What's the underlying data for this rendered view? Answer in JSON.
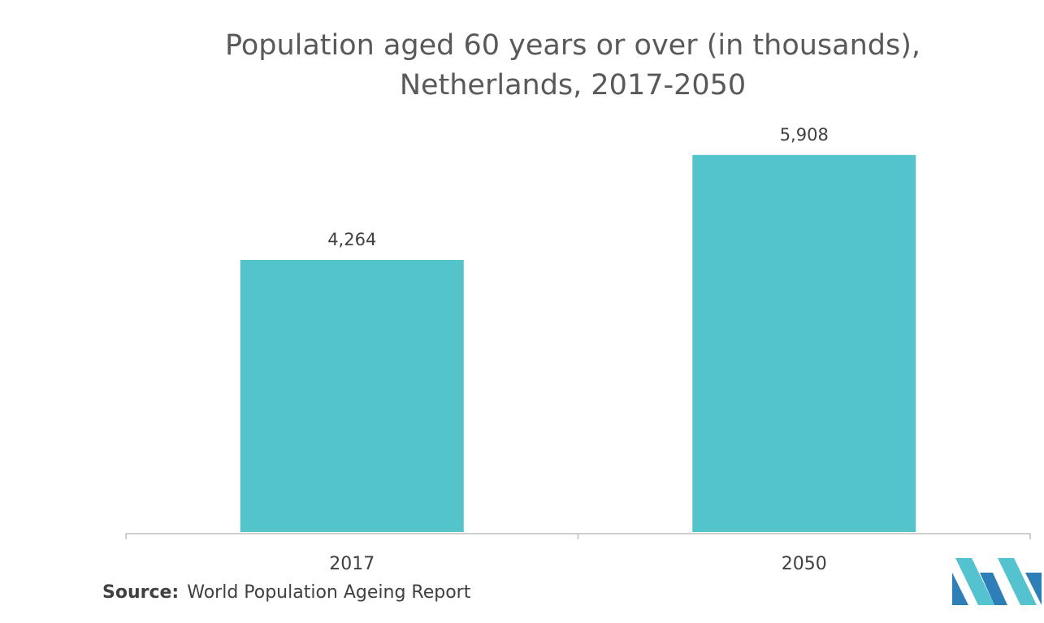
{
  "chart_data": {
    "type": "bar",
    "title": "Population aged 60 years or over (in thousands), Netherlands, 2017-2050",
    "title_lines": [
      "Population aged 60 years or over (in thousands),",
      "Netherlands, 2017-2050"
    ],
    "categories": [
      "2017",
      "2050"
    ],
    "values": [
      4264,
      5908
    ],
    "value_labels": [
      "4,264",
      "5,908"
    ],
    "xlabel": "",
    "ylabel": "",
    "ylim": [
      0,
      7000
    ],
    "grid": false,
    "legend": "none",
    "bar_color": "#52C4CA"
  },
  "source": {
    "label": "Source:",
    "text": "World Population Ageing Report"
  },
  "logo": {
    "icon": "mordor-intelligence-logo-icon",
    "colors": [
      "#2E7FB8",
      "#55C3CF"
    ]
  }
}
